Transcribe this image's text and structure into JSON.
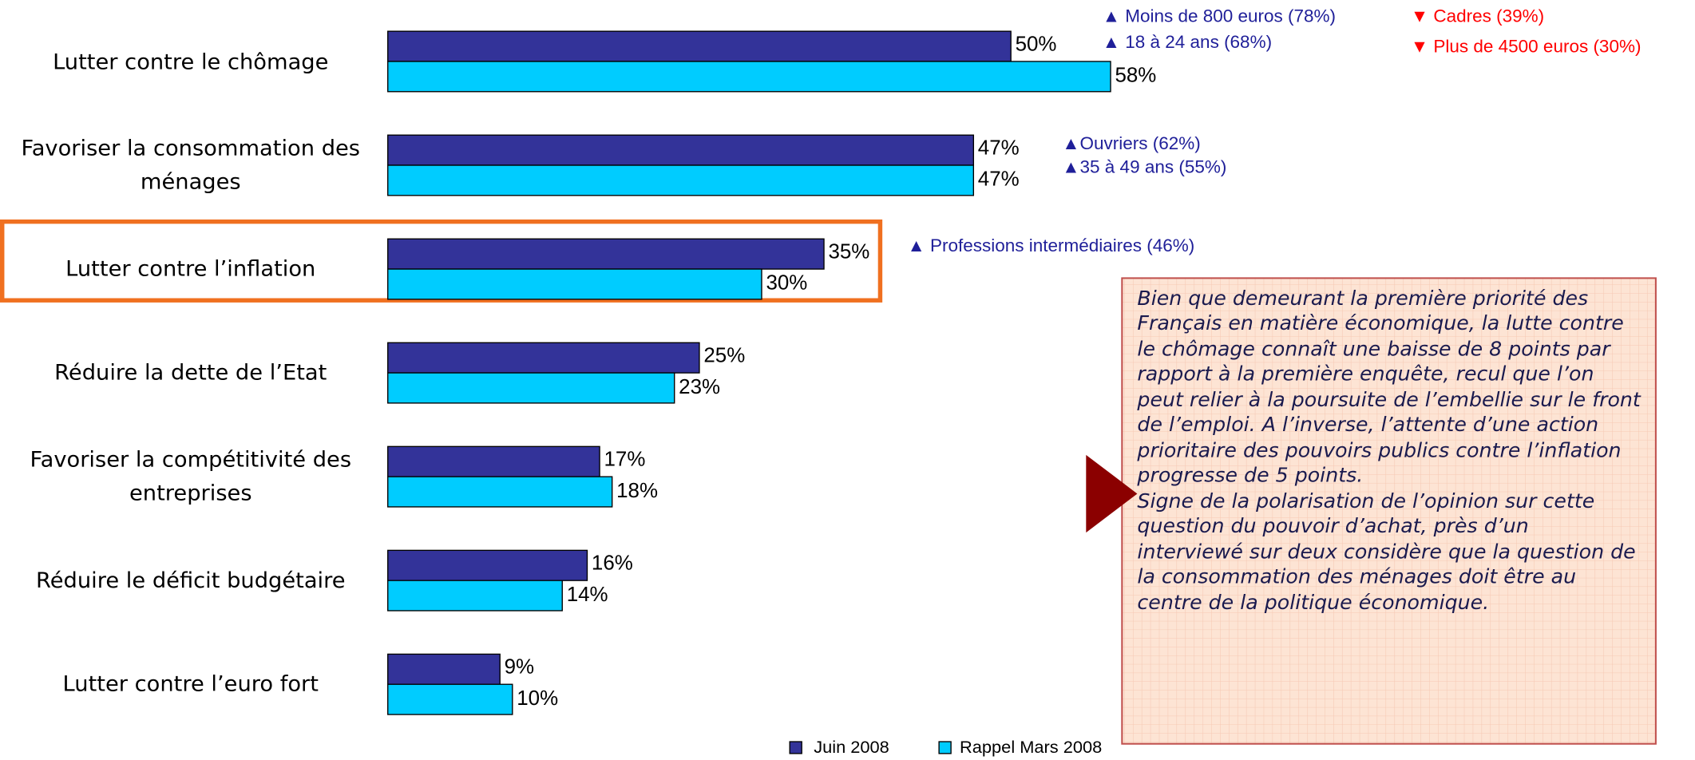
{
  "chart_data": {
    "type": "bar",
    "orientation": "horizontal",
    "categories": [
      "Lutter contre le chômage",
      "Favoriser la consommation des ménages",
      "Lutter contre l’inflation",
      "Réduire la dette de l’Etat",
      "Favoriser la compétitivité des entreprises",
      "Réduire le déficit budgétaire",
      "Lutter contre l’euro fort"
    ],
    "series": [
      {
        "name": "Juin 2008",
        "color": "#333399",
        "values": [
          50,
          47,
          35,
          25,
          17,
          16,
          9
        ],
        "value_labels": [
          "50%",
          "47%",
          "35%",
          "25%",
          "17%",
          "16%",
          "9%"
        ]
      },
      {
        "name": "Rappel Mars 2008",
        "color": "#00ccff",
        "values": [
          58,
          47,
          30,
          23,
          18,
          14,
          10
        ],
        "value_labels": [
          "58%",
          "47%",
          "30%",
          "23%",
          "18%",
          "14%",
          "10%"
        ]
      }
    ],
    "xlim": [
      0,
      100
    ],
    "highlight_category": 2,
    "highlight_color": "#f07020",
    "annotations": [
      {
        "text": "▲ Moins de 800 euros (78%)",
        "color": "#1f1f99"
      },
      {
        "text": "▲ 18 à 24 ans (68%)",
        "color": "#1f1f99"
      },
      {
        "text": "▼ Cadres (39%)",
        "color": "#ff0000"
      },
      {
        "text": "▼ Plus de 4500 euros (30%)",
        "color": "#ff0000"
      },
      {
        "text": "▲Ouvriers (62%)",
        "color": "#1f1f99"
      },
      {
        "text": "▲35 à 49 ans (55%)",
        "color": "#1f1f99"
      },
      {
        "text": "▲ Professions intermédiaires (46%)",
        "color": "#1f1f99"
      }
    ],
    "commentary": [
      "Bien que demeurant la première priorité des Français en matière économique, la lutte contre le chômage connaît une baisse de 8 points par rapport à la première enquête, recul que l’on peut relier à la poursuite de l’embellie sur le front de l’emploi. A l’inverse, l’attente d’une action prioritaire des pouvoirs publics contre l’inflation progresse de 5 points.",
      "Signe de la polarisation de l’opinion sur cette question du pouvoir d’achat, près d’un interviewé sur deux considère que la question de la consommation des ménages doit être au centre de la politique économique."
    ]
  }
}
